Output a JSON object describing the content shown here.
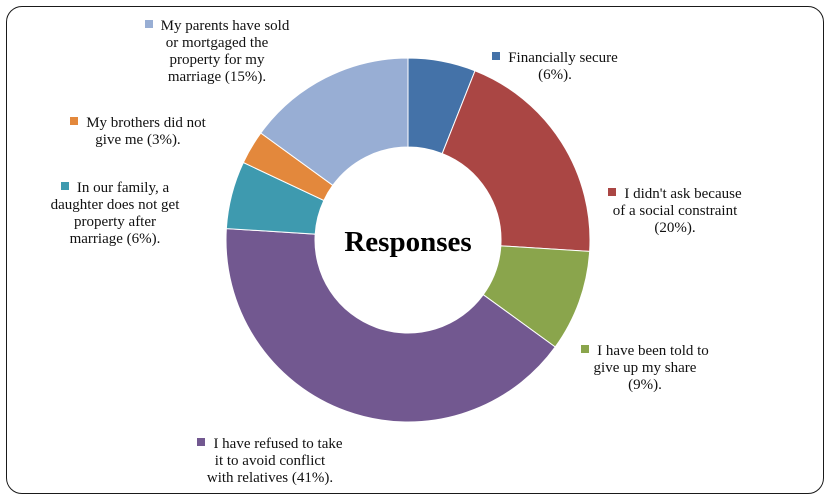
{
  "chart_data": {
    "type": "pie",
    "title": "Responses",
    "legend": "labels around donut",
    "slices": [
      {
        "label_lines": [
          "Financially secure",
          "(6%)."
        ],
        "value": 6,
        "color": "#4472a8"
      },
      {
        "label_lines": [
          "I didn't ask because",
          "of a social constraint",
          "(20%)."
        ],
        "value": 20,
        "color": "#aa4644"
      },
      {
        "label_lines": [
          "I have been told to",
          "give up my share",
          "(9%)."
        ],
        "value": 9,
        "color": "#8aa54c"
      },
      {
        "label_lines": [
          "I have refused to take",
          "it to avoid conflict",
          "with relatives (41%)."
        ],
        "value": 41,
        "color": "#725890"
      },
      {
        "label_lines": [
          "In our family, a",
          "daughter does not get",
          "property after",
          "marriage (6%)."
        ],
        "value": 6,
        "color": "#3e9aaf"
      },
      {
        "label_lines": [
          "My brothers did not",
          "give me (3%)."
        ],
        "value": 3,
        "color": "#e3883c"
      },
      {
        "label_lines": [
          "My parents have sold",
          "or mortgaged the",
          "property for my",
          "marriage (15%)."
        ],
        "value": 15,
        "color": "#98aed4"
      }
    ]
  }
}
